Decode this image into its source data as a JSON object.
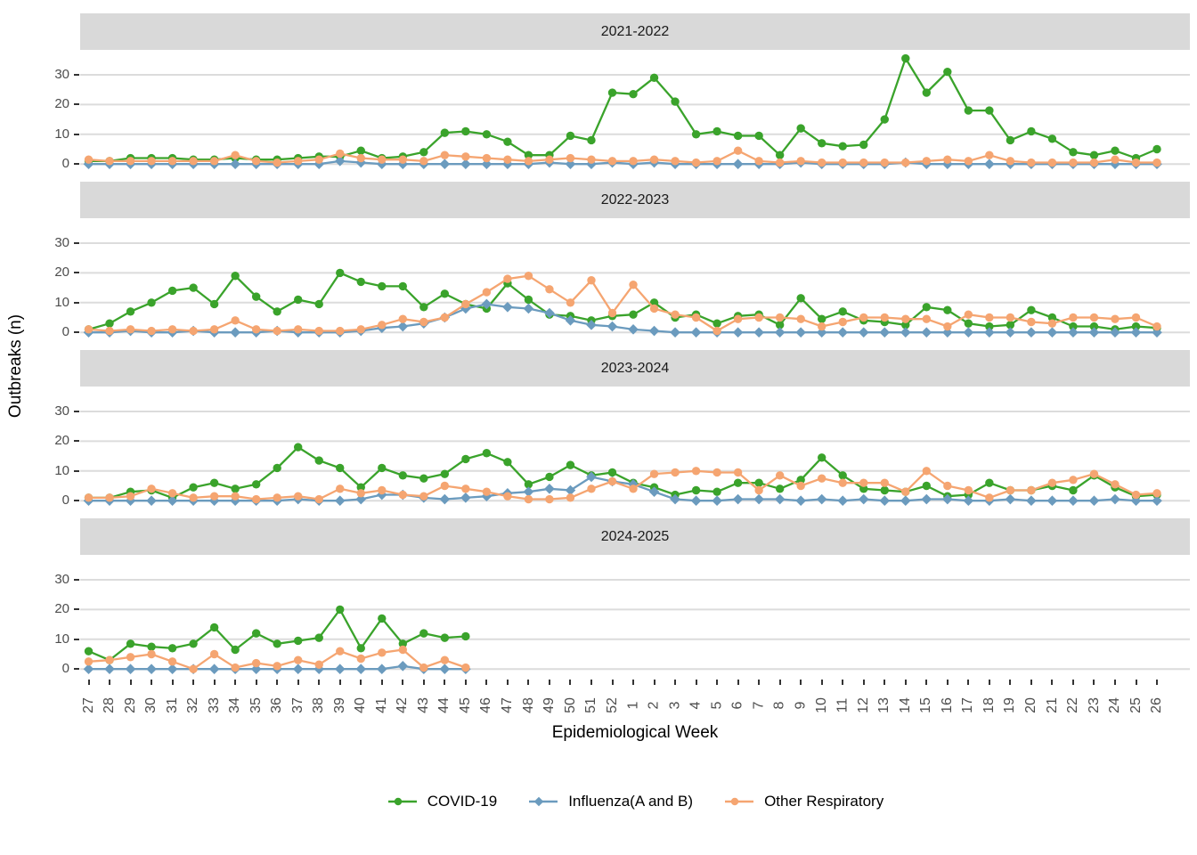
{
  "chart_data": {
    "type": "line",
    "title": "",
    "xlabel": "Epidemiological Week",
    "ylabel": "Outbreaks (n)",
    "ylim": [
      0,
      36
    ],
    "y_ticks": [
      0,
      10,
      20,
      30
    ],
    "grid": "horizontal-only",
    "legend_position": "bottom",
    "x_categories": [
      "27",
      "28",
      "29",
      "30",
      "31",
      "32",
      "33",
      "34",
      "35",
      "36",
      "37",
      "38",
      "39",
      "40",
      "41",
      "42",
      "43",
      "44",
      "45",
      "46",
      "47",
      "48",
      "49",
      "50",
      "51",
      "52",
      "1",
      "2",
      "3",
      "4",
      "5",
      "6",
      "7",
      "8",
      "9",
      "10",
      "11",
      "12",
      "13",
      "14",
      "15",
      "16",
      "17",
      "18",
      "19",
      "20",
      "21",
      "22",
      "23",
      "24",
      "25",
      "26"
    ],
    "series_meta": [
      {
        "key": "covid19",
        "label": "COVID-19",
        "color": "#3AA32B",
        "marker": "circle"
      },
      {
        "key": "influenza",
        "label": "Influenza(A and B)",
        "color": "#6B9BBE",
        "marker": "diamond"
      },
      {
        "key": "other_respiratory",
        "label": "Other Respiratory",
        "color": "#F5A571",
        "marker": "circle"
      }
    ],
    "panels": [
      {
        "title": "2021-2022",
        "series": {
          "covid19": [
            1,
            1,
            2,
            2,
            2,
            1.5,
            1.5,
            2,
            1.5,
            1.5,
            2,
            2.5,
            2.5,
            4.5,
            2,
            2.5,
            4,
            10.5,
            11,
            10,
            7.5,
            3,
            3,
            9.5,
            8,
            24,
            23.5,
            29,
            21,
            10,
            11,
            9.5,
            9.5,
            3,
            12,
            7,
            6,
            6.5,
            15,
            35.5,
            24,
            31,
            18,
            18,
            8,
            11,
            8.5,
            4,
            3,
            4.5,
            2,
            5
          ],
          "influenza": [
            0,
            0,
            0,
            0,
            0,
            0,
            0,
            0,
            0,
            0,
            0,
            0,
            1,
            0.5,
            0,
            0,
            0,
            0,
            0,
            0,
            0,
            0,
            0.5,
            0,
            0,
            0.5,
            0,
            0.5,
            0,
            0,
            0,
            0,
            0,
            0,
            0.5,
            0,
            0,
            0,
            0,
            0.5,
            0,
            0,
            0,
            0,
            0,
            0,
            0,
            0,
            0,
            0,
            0,
            0
          ],
          "other_respiratory": [
            1.5,
            1,
            1,
            1,
            1,
            1,
            1,
            3,
            1,
            0.5,
            1,
            1.5,
            3.5,
            2,
            1.5,
            1.5,
            1,
            3,
            2.5,
            2,
            1.5,
            1,
            1.5,
            2,
            1.5,
            1,
            1,
            1.5,
            1,
            0.5,
            1,
            4.5,
            1,
            0.5,
            1,
            0.5,
            0.5,
            0.5,
            0.5,
            0.5,
            1,
            1.5,
            1,
            3,
            1,
            0.5,
            0.5,
            0.5,
            0.5,
            1.5,
            0.5,
            0.5
          ]
        }
      },
      {
        "title": "2022-2023",
        "series": {
          "covid19": [
            1,
            3,
            7,
            10,
            14,
            15,
            9.5,
            19,
            12,
            7,
            11,
            9.5,
            20,
            17,
            15.5,
            15.5,
            8.5,
            13,
            9.5,
            8,
            16.5,
            11,
            6,
            5.5,
            4,
            5.5,
            6,
            10,
            5,
            6,
            3,
            5.5,
            6,
            2.5,
            11.5,
            4.5,
            7,
            4,
            3.5,
            2.5,
            8.5,
            7.5,
            3,
            2,
            2.5,
            7.5,
            5,
            2,
            2,
            1,
            2,
            1.5
          ],
          "influenza": [
            0,
            0,
            0.5,
            0,
            0,
            0.5,
            0,
            0,
            0,
            0.5,
            0,
            0,
            0,
            0.5,
            1.5,
            2,
            3,
            5,
            8,
            9.5,
            8.5,
            8,
            6.5,
            4,
            2.5,
            2,
            1,
            0.5,
            0,
            0,
            0,
            0,
            0,
            0,
            0,
            0,
            0,
            0,
            0,
            0,
            0,
            0,
            0,
            0,
            0,
            0,
            0,
            0,
            0,
            0,
            0,
            0
          ],
          "other_respiratory": [
            1,
            0.5,
            1,
            0.5,
            1,
            0.5,
            1,
            4,
            1,
            0.5,
            1,
            0.5,
            0.5,
            1,
            2.5,
            4.5,
            3.5,
            5,
            9.5,
            13.5,
            18,
            19,
            14.5,
            10,
            17.5,
            6.5,
            16,
            8,
            6,
            5,
            0.5,
            4.5,
            5,
            5,
            4.5,
            2,
            3.5,
            5,
            5,
            4.5,
            4.5,
            2,
            6,
            5,
            5,
            3.5,
            3,
            5,
            5,
            4.5,
            5,
            2
          ]
        }
      },
      {
        "title": "2023-2024",
        "series": {
          "covid19": [
            1,
            1,
            3,
            3.5,
            1,
            4.5,
            6,
            4,
            5.5,
            11,
            18,
            13.5,
            11,
            4.5,
            11,
            8.5,
            7.5,
            9,
            14,
            16,
            13,
            5.5,
            8,
            12,
            8.5,
            9.5,
            6,
            4.5,
            2,
            3.5,
            3,
            6,
            6,
            4,
            7,
            14.5,
            8.5,
            4,
            3.5,
            3,
            5,
            1.5,
            2,
            6,
            3.5,
            3.5,
            5,
            3.5,
            8.5,
            4.5,
            1.5,
            2
          ],
          "influenza": [
            0,
            0,
            0,
            0,
            0,
            0,
            0,
            0,
            0,
            0,
            0.5,
            0,
            0,
            0.5,
            2,
            2,
            1,
            0.5,
            1,
            1.5,
            2.5,
            3,
            4,
            3.5,
            8,
            6.5,
            5.5,
            3,
            0.5,
            0,
            0,
            0.5,
            0.5,
            0.5,
            0,
            0.5,
            0,
            0.5,
            0,
            0,
            0.5,
            0.5,
            0,
            0,
            0.5,
            0,
            0,
            0,
            0,
            0.5,
            0,
            0
          ],
          "other_respiratory": [
            1,
            1,
            1.5,
            4,
            2.5,
            1,
            1.5,
            1.5,
            0.5,
            1,
            1.5,
            0.5,
            4,
            2.5,
            3.5,
            2,
            1.5,
            5,
            4,
            3,
            1.5,
            0.5,
            0.5,
            1,
            4,
            6.5,
            4,
            9,
            9.5,
            10,
            9.5,
            9.5,
            3.5,
            8.5,
            5,
            7.5,
            6,
            6,
            6,
            3,
            10,
            5,
            3.5,
            1,
            3.5,
            3.5,
            6,
            7,
            9,
            5.5,
            2,
            2.5
          ]
        }
      },
      {
        "title": "2024-2025",
        "series": {
          "covid19": [
            6,
            3,
            8.5,
            7.5,
            7,
            8.5,
            14,
            6.5,
            12,
            8.5,
            9.5,
            10.5,
            20,
            7,
            17,
            8.5,
            12,
            10.5,
            11
          ],
          "influenza": [
            0,
            0,
            0,
            0,
            0,
            0,
            0,
            0,
            0,
            0,
            0,
            0,
            0,
            0,
            0,
            1,
            0,
            0,
            0
          ],
          "other_respiratory": [
            2.5,
            3,
            4,
            5,
            2.5,
            0,
            5,
            0.5,
            2,
            1,
            3,
            1.5,
            6,
            3.5,
            5.5,
            6.5,
            0.5,
            3,
            0.5
          ]
        }
      }
    ]
  },
  "style": {
    "strip_background": "#D9D9D9",
    "gridline_color": "#DCDCDC",
    "axis_text_color": "#4D4D4D",
    "tick_mark_color": "#333333"
  }
}
